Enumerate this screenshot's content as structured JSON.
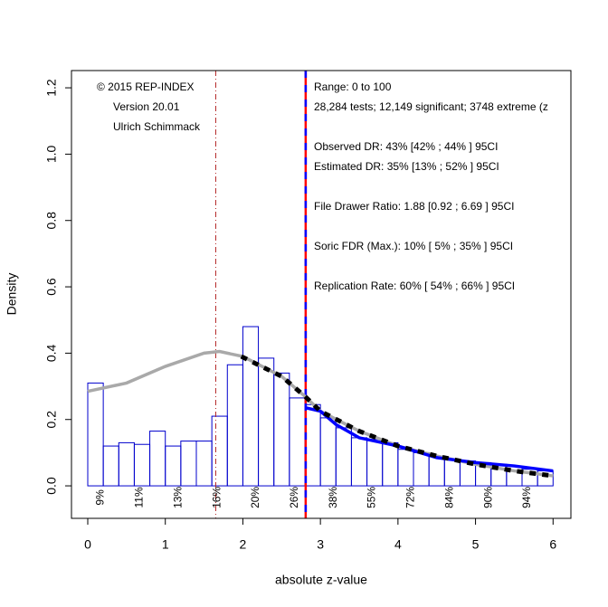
{
  "chart_data": {
    "type": "histogram",
    "xlabel": "absolute z-value",
    "ylabel": "Density",
    "xlim": [
      -0.21,
      6.23
    ],
    "ylim": [
      -0.098,
      1.252
    ],
    "xticks": [
      0,
      1,
      2,
      3,
      4,
      5,
      6
    ],
    "yticks": [
      {
        "value": 0,
        "label": "0.0"
      },
      0.2,
      0.4,
      0.6,
      0.8,
      {
        "value": 1,
        "label": "1.0"
      },
      1.2
    ],
    "bins": [
      0,
      0.2,
      0.4,
      0.6,
      0.8,
      1,
      1.2,
      1.4,
      1.6,
      1.8,
      2,
      2.2,
      2.4,
      2.6,
      2.8,
      3,
      3.2,
      3.4,
      3.6,
      3.8,
      4,
      4.2,
      4.4,
      4.6,
      4.8,
      5,
      5.2,
      5.4,
      5.6,
      5.8,
      6
    ],
    "values": [
      0.31,
      0.12,
      0.13,
      0.125,
      0.165,
      0.12,
      0.135,
      0.135,
      0.21,
      0.365,
      0.48,
      0.385,
      0.34,
      0.265,
      0.245,
      0.205,
      0.175,
      0.145,
      0.14,
      0.13,
      0.11,
      0.1,
      0.09,
      0.08,
      0.075,
      0.07,
      0.065,
      0.06,
      0.05,
      0.045
    ],
    "color": "#0000cd",
    "curves": [
      {
        "color": "#a9a9a9",
        "style": "solid",
        "x": [
          0,
          0.5,
          1,
          1.5,
          1.7,
          2,
          2.5,
          2.8,
          3,
          3.5,
          4,
          4.5,
          5,
          5.5,
          6
        ],
        "values": [
          0.285,
          0.31,
          0.36,
          0.4,
          0.405,
          0.39,
          0.33,
          0.27,
          0.225,
          0.165,
          0.12,
          0.09,
          0.065,
          0.045,
          0.03
        ]
      },
      {
        "color": "#0000ff",
        "style": "solid",
        "x": [
          2.82,
          3,
          3.2,
          3.5,
          4,
          4.5,
          5,
          5.5,
          6
        ],
        "values": [
          0.235,
          0.225,
          0.185,
          0.145,
          0.12,
          0.085,
          0.07,
          0.06,
          0.045
        ]
      },
      {
        "color": "#000000",
        "style": "dashed",
        "x": [
          1.98,
          2.5,
          2.8,
          3,
          3.5,
          4,
          4.5,
          5,
          5.5,
          6
        ],
        "values": [
          0.39,
          0.33,
          0.27,
          0.225,
          0.165,
          0.12,
          0.09,
          0.065,
          0.045,
          0.03
        ]
      }
    ],
    "vlines": [
      {
        "x": 1.65,
        "color": "#b22222",
        "style": "dashdot"
      },
      {
        "x": 2.81,
        "color": "#ff0000",
        "style": "solid"
      },
      {
        "x": 2.81,
        "color": "#0000ff",
        "style": "dashed"
      }
    ],
    "local_power_labels": [
      "9%",
      "11%",
      "13%",
      "16%",
      "20%",
      "26%",
      "38%",
      "55%",
      "72%",
      "84%",
      "90%",
      "94%"
    ],
    "credits": [
      "© 2015 REP-INDEX",
      "Version 20.01",
      "Ulrich Schimmack"
    ],
    "annotations": [
      "Range: 0 to 100",
      "28,284 tests; 12,149 significant; 3748 extreme (z",
      "Observed DR: 43% [42% ; 44% ] 95CI",
      "Estimated DR: 35% [13% ; 52% ] 95CI",
      "File Drawer Ratio: 1.88 [0.92 ; 6.69 ] 95CI",
      "Soric FDR (Max.): 10% [ 5% ; 35% ] 95CI",
      "Replication Rate: 60% [ 54% ; 66% ] 95CI"
    ]
  }
}
